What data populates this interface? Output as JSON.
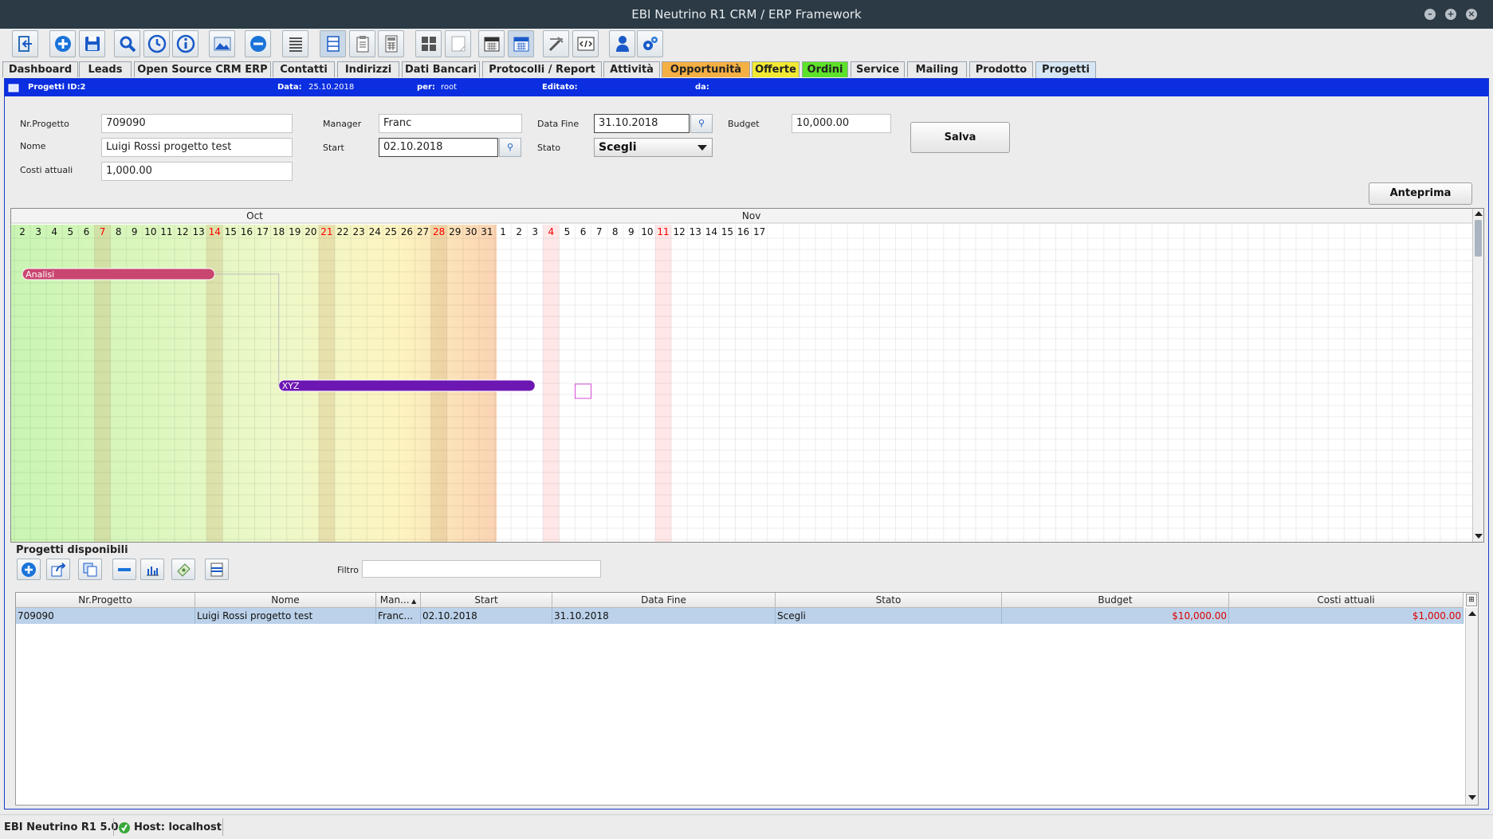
{
  "window": {
    "title": "EBI Neutrino R1 CRM / ERP Framework"
  },
  "toolbar": {
    "icons": [
      "logout-icon",
      "add-icon",
      "save-icon",
      "search-icon",
      "history-icon",
      "info-icon",
      "image-icon",
      "remove-icon",
      "list-icon",
      "rows-icon",
      "clipboard-icon",
      "calculator-icon",
      "grid-icon",
      "blank-page-icon",
      "calendar-icon",
      "calendar-grid-icon",
      "tools-icon",
      "code-icon",
      "user-icon",
      "settings-icon"
    ]
  },
  "tabs": [
    {
      "label": "Dashboard",
      "color": "#eaeaea"
    },
    {
      "label": "Leads",
      "color": "#eaeaea"
    },
    {
      "label": "Open Source CRM ERP",
      "color": "#eaeaea"
    },
    {
      "label": "Contatti",
      "color": "#eaeaea"
    },
    {
      "label": "Indirizzi",
      "color": "#eaeaea"
    },
    {
      "label": "Dati Bancari",
      "color": "#eaeaea"
    },
    {
      "label": "Protocolli / Report",
      "color": "#eaeaea"
    },
    {
      "label": "Attività",
      "color": "#eaeaea"
    },
    {
      "label": "Opportunità",
      "color": "#f5b043"
    },
    {
      "label": "Offerte",
      "color": "#f2ea32"
    },
    {
      "label": "Ordini",
      "color": "#5de22a"
    },
    {
      "label": "Service",
      "color": "#eaeaea"
    },
    {
      "label": "Mailing",
      "color": "#eaeaea"
    },
    {
      "label": "Prodotto",
      "color": "#eaeaea"
    },
    {
      "label": "Progetti",
      "color": "#d6e6f5",
      "active": true
    }
  ],
  "header": {
    "title": "Progetti ID:2",
    "data_label": "Data:",
    "data_value": "25.10.2018",
    "per_label": "per:",
    "per_value": "root",
    "editato_label": "Editato:",
    "da_label": "da:"
  },
  "form": {
    "nr_progetto_label": "Nr.Progetto",
    "nr_progetto": "709090",
    "nome_label": "Nome",
    "nome": "Luigi Rossi progetto test",
    "costi_label": "Costi attuali",
    "costi": "1,000.00",
    "manager_label": "Manager",
    "manager": "Franc",
    "start_label": "Start",
    "start": "02.10.2018",
    "data_fine_label": "Data Fine",
    "data_fine": "31.10.2018",
    "stato_label": "Stato",
    "stato": "Scegli",
    "budget_label": "Budget",
    "budget": "10,000.00",
    "salva": "Salva",
    "anteprima": "Anteprima"
  },
  "gantt": {
    "months": [
      "Oct",
      "Nov"
    ],
    "oct_days": [
      "2",
      "3",
      "4",
      "5",
      "6",
      "7",
      "8",
      "9",
      "10",
      "11",
      "12",
      "13",
      "14",
      "15",
      "16",
      "17",
      "18",
      "19",
      "20",
      "21",
      "22",
      "23",
      "24",
      "25",
      "26",
      "27",
      "28",
      "29",
      "30",
      "31"
    ],
    "nov_days": [
      "1",
      "2",
      "3",
      "4",
      "5",
      "6",
      "7",
      "8",
      "9",
      "10",
      "11",
      "12",
      "13",
      "14",
      "15",
      "16",
      "17"
    ],
    "sundays_oct": [
      "7",
      "14",
      "21",
      "28"
    ],
    "sundays_nov": [
      "4",
      "11"
    ],
    "tasks": [
      {
        "name": "Analisi",
        "start": "2018-10-03",
        "end": "2018-10-14",
        "color": "#c94670"
      },
      {
        "name": "XYZ",
        "start": "2018-10-19",
        "end": "2018-11-03",
        "color": "#6d17b3"
      }
    ],
    "today_color": "#f0c8f0",
    "weekend_color": "#ff0000"
  },
  "projects": {
    "section_title": "Progetti disponibili",
    "filtro_label": "Filtro",
    "filtro_value": "",
    "columns": [
      "Nr.Progetto",
      "Nome",
      "Man...",
      "Start",
      "Data Fine",
      "Stato",
      "Budget",
      "Costi attuali"
    ],
    "rows": [
      [
        "709090",
        "Luigi Rossi progetto test",
        "Franc...",
        "02.10.2018",
        "31.10.2018",
        "Scegli",
        "$10,000.00",
        "$1,000.00"
      ]
    ]
  },
  "status": {
    "version": "EBI Neutrino R1 5.0",
    "host": "Host: localhost"
  }
}
